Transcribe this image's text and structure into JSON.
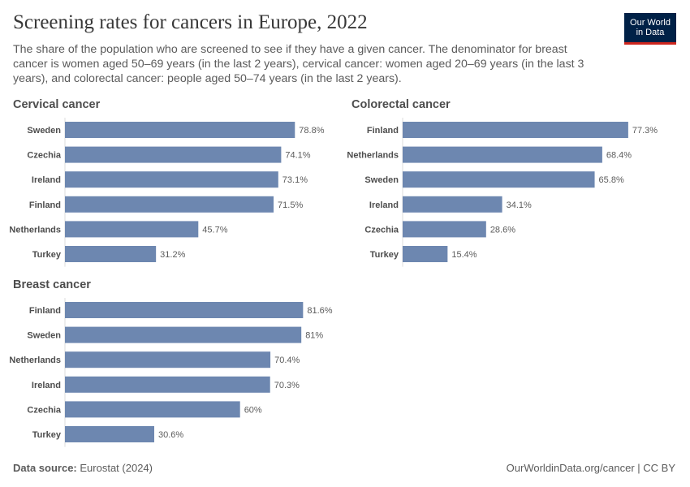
{
  "header": {
    "title": "Screening rates for cancers in Europe, 2022",
    "subtitle": "The share of the population who are screened to see if they have a given cancer. The denominator for breast cancer is women aged 50–69 years (in the last 2 years), cervical cancer: women aged 20–69 years (in the last 3 years), and colorectal cancer: people aged 50–74 years (in the last 2 years).",
    "logo_line1": "Our World",
    "logo_line2": "in Data"
  },
  "footer": {
    "source_label": "Data source:",
    "source": "Eurostat (2024)",
    "credit": "OurWorldinData.org/cancer | CC BY"
  },
  "colors": {
    "bar": "#6d87b0",
    "logo_bg": "#002147",
    "logo_accent": "#ce261e"
  },
  "chart_data": [
    {
      "type": "bar",
      "orientation": "horizontal",
      "title": "Cervical cancer",
      "unit": "%",
      "categories": [
        "Sweden",
        "Czechia",
        "Ireland",
        "Finland",
        "Netherlands",
        "Turkey"
      ],
      "values": [
        78.8,
        74.1,
        73.1,
        71.5,
        45.7,
        31.2
      ],
      "labels": [
        "78.8%",
        "74.1%",
        "73.1%",
        "71.5%",
        "45.7%",
        "31.2%"
      ]
    },
    {
      "type": "bar",
      "orientation": "horizontal",
      "title": "Colorectal cancer",
      "unit": "%",
      "categories": [
        "Finland",
        "Netherlands",
        "Sweden",
        "Ireland",
        "Czechia",
        "Turkey"
      ],
      "values": [
        77.3,
        68.4,
        65.8,
        34.1,
        28.6,
        15.4
      ],
      "labels": [
        "77.3%",
        "68.4%",
        "65.8%",
        "34.1%",
        "28.6%",
        "15.4%"
      ]
    },
    {
      "type": "bar",
      "orientation": "horizontal",
      "title": "Breast cancer",
      "unit": "%",
      "categories": [
        "Finland",
        "Sweden",
        "Netherlands",
        "Ireland",
        "Czechia",
        "Turkey"
      ],
      "values": [
        81.6,
        81,
        70.4,
        70.3,
        60,
        30.6
      ],
      "labels": [
        "81.6%",
        "81%",
        "70.4%",
        "70.3%",
        "60%",
        "30.6%"
      ]
    }
  ]
}
